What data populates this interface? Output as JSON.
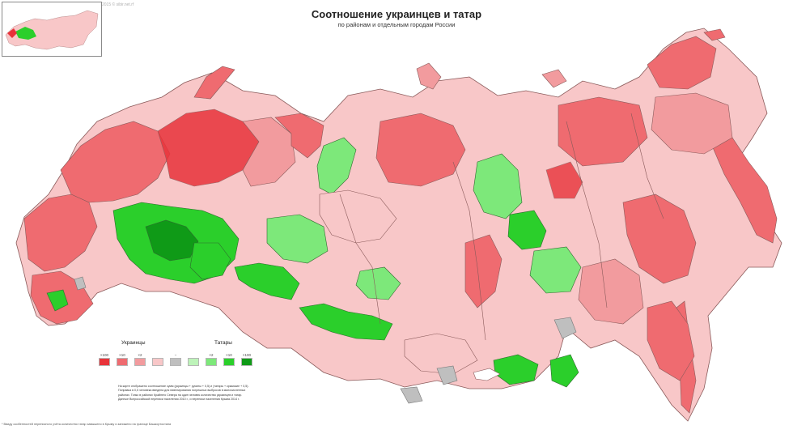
{
  "header": {
    "title": "Соотношение украинцев и татар",
    "subtitle": "по районам и отдельным городам России",
    "credit": "2015 © sibir.net.rf"
  },
  "legend": {
    "left_label": "Украинцы",
    "right_label": "Татары",
    "ticks": [
      "×100",
      "×10",
      "×2",
      "",
      "−",
      "",
      "×2",
      "×10",
      "×100"
    ],
    "swatches": [
      {
        "key": "ukr-100",
        "color": "#e8333a"
      },
      {
        "key": "ukr-10",
        "color": "#ef6b70"
      },
      {
        "key": "ukr-2",
        "color": "#f29b9e"
      },
      {
        "key": "ukr-1",
        "color": "#f8c7c8"
      },
      {
        "key": "equal",
        "color": "#bfbfbf"
      },
      {
        "key": "tat-1",
        "color": "#bdf3b9"
      },
      {
        "key": "tat-2",
        "color": "#7de87a"
      },
      {
        "key": "tat-10",
        "color": "#2bcf2b"
      },
      {
        "key": "tat-100",
        "color": "#0f9a17"
      }
    ]
  },
  "notes": [
    "На карте отображено соотношение сумм (украинцы + русины + 0,5) и (татары + крымские + 0,5).",
    "Поправка в 0,5 человека введена для нивелирования погрешных выбросов в малочисленных",
    "районах. Тонко в районах Крайнего Севера на один человек количество украинцев и татар.",
    "Данные Всероссийской переписи населения 2010 г., и переписи населения Крыма 2014 г."
  ],
  "footnote": "* Ввиду особенностей переписного учёта количество татар завышено в Крыму и занижено на границе Башкортостана",
  "colors": {
    "ukr_strong": "#e8333a",
    "ukr_mid": "#ef6b70",
    "ukr_light": "#f29b9e",
    "ukr_pale": "#f8c7c8",
    "tat_pale": "#bdf3b9",
    "tat_light": "#7de87a",
    "tat_mid": "#2bcf2b",
    "tat_strong": "#0f9a17",
    "equal": "#bfbfbf",
    "border": "#5a3030"
  }
}
